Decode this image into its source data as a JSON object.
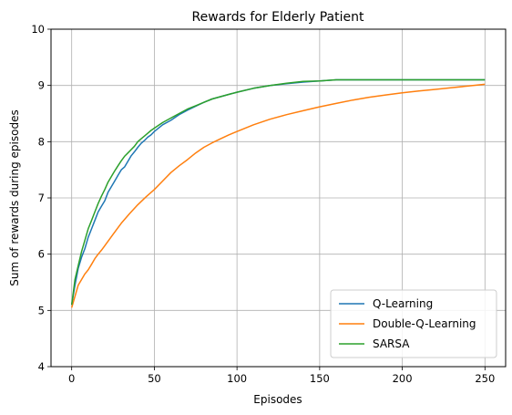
{
  "chart_data": {
    "type": "line",
    "title": "Rewards for Elderly Patient",
    "xlabel": "Episodes",
    "ylabel": "Sum of rewards during episodes",
    "xlim": [
      -12.5,
      262.5
    ],
    "ylim": [
      4,
      10
    ],
    "xticks": [
      0,
      50,
      100,
      150,
      200,
      250
    ],
    "yticks": [
      4,
      5,
      6,
      7,
      8,
      9,
      10
    ],
    "grid": true,
    "legend_position": "lower-right",
    "series": [
      {
        "name": "Q-Learning",
        "color": "#1f77b4",
        "x": [
          0,
          2,
          4,
          6,
          8,
          10,
          12,
          14,
          16,
          18,
          20,
          22,
          24,
          26,
          28,
          30,
          32,
          34,
          36,
          38,
          40,
          42,
          44,
          46,
          48,
          50,
          55,
          60,
          65,
          70,
          75,
          80,
          85,
          90,
          95,
          100,
          110,
          120,
          130,
          140,
          150,
          160,
          170,
          180,
          190,
          200,
          210,
          220,
          230,
          240,
          250
        ],
        "y": [
          5.1,
          5.45,
          5.75,
          5.95,
          6.1,
          6.3,
          6.45,
          6.6,
          6.75,
          6.85,
          6.95,
          7.1,
          7.2,
          7.3,
          7.4,
          7.5,
          7.55,
          7.65,
          7.75,
          7.82,
          7.9,
          7.97,
          8.02,
          8.08,
          8.12,
          8.18,
          8.3,
          8.38,
          8.48,
          8.56,
          8.63,
          8.7,
          8.76,
          8.8,
          8.84,
          8.88,
          8.95,
          9.0,
          9.03,
          9.06,
          9.08,
          9.1,
          9.1,
          9.1,
          9.1,
          9.1,
          9.1,
          9.1,
          9.1,
          9.1,
          9.1
        ]
      },
      {
        "name": "Double-Q-Learning",
        "color": "#ff7f0e",
        "x": [
          0,
          2,
          4,
          6,
          8,
          10,
          12,
          14,
          16,
          18,
          20,
          25,
          30,
          35,
          40,
          45,
          50,
          55,
          60,
          65,
          70,
          75,
          80,
          85,
          90,
          95,
          100,
          110,
          120,
          130,
          140,
          150,
          160,
          170,
          180,
          190,
          200,
          210,
          220,
          230,
          240,
          250
        ],
        "y": [
          5.05,
          5.25,
          5.45,
          5.55,
          5.65,
          5.72,
          5.82,
          5.92,
          6.0,
          6.07,
          6.15,
          6.35,
          6.55,
          6.72,
          6.88,
          7.02,
          7.15,
          7.3,
          7.45,
          7.57,
          7.68,
          7.8,
          7.9,
          7.98,
          8.05,
          8.12,
          8.18,
          8.3,
          8.4,
          8.48,
          8.55,
          8.62,
          8.68,
          8.74,
          8.79,
          8.83,
          8.87,
          8.9,
          8.93,
          8.96,
          8.99,
          9.02
        ]
      },
      {
        "name": "SARSA",
        "color": "#2ca02c",
        "x": [
          0,
          2,
          4,
          6,
          8,
          10,
          12,
          14,
          16,
          18,
          20,
          22,
          24,
          26,
          28,
          30,
          32,
          34,
          36,
          38,
          40,
          42,
          44,
          46,
          48,
          50,
          55,
          60,
          65,
          70,
          75,
          80,
          85,
          90,
          95,
          100,
          110,
          120,
          130,
          140,
          150,
          160,
          170,
          180,
          190,
          200,
          210,
          220,
          230,
          240,
          250
        ],
        "y": [
          5.1,
          5.55,
          5.8,
          6.05,
          6.25,
          6.45,
          6.6,
          6.75,
          6.9,
          7.03,
          7.15,
          7.28,
          7.38,
          7.48,
          7.57,
          7.66,
          7.74,
          7.8,
          7.86,
          7.92,
          8.0,
          8.05,
          8.1,
          8.15,
          8.2,
          8.24,
          8.34,
          8.42,
          8.5,
          8.58,
          8.64,
          8.7,
          8.76,
          8.8,
          8.84,
          8.88,
          8.95,
          9.0,
          9.04,
          9.07,
          9.08,
          9.1,
          9.1,
          9.1,
          9.1,
          9.1,
          9.1,
          9.1,
          9.1,
          9.1,
          9.1
        ]
      }
    ]
  }
}
